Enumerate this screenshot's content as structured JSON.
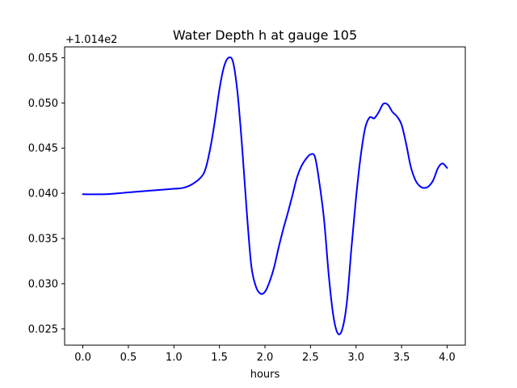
{
  "chart_data": {
    "type": "line",
    "title": "Water Depth h at gauge 105",
    "xlabel": "hours",
    "ylabel": "",
    "offset_label": "+1.014e2",
    "xlim": [
      -0.2,
      4.2
    ],
    "ylim": [
      0.0232,
      0.0562
    ],
    "xticks": [
      0.0,
      0.5,
      1.0,
      1.5,
      2.0,
      2.5,
      3.0,
      3.5,
      4.0
    ],
    "xtick_labels": [
      "0.0",
      "0.5",
      "1.0",
      "1.5",
      "2.0",
      "2.5",
      "3.0",
      "3.5",
      "4.0"
    ],
    "yticks": [
      0.025,
      0.03,
      0.035,
      0.04,
      0.045,
      0.05,
      0.055
    ],
    "ytick_labels": [
      "0.025",
      "0.030",
      "0.035",
      "0.040",
      "0.045",
      "0.050",
      "0.055"
    ],
    "grid": false,
    "series": [
      {
        "color": "#0000ff",
        "x": [
          0.0,
          0.25,
          0.5,
          0.75,
          1.0,
          1.1,
          1.2,
          1.3,
          1.35,
          1.4,
          1.45,
          1.5,
          1.55,
          1.6,
          1.65,
          1.7,
          1.75,
          1.8,
          1.85,
          1.9,
          1.95,
          2.0,
          2.05,
          2.1,
          2.15,
          2.2,
          2.25,
          2.3,
          2.35,
          2.4,
          2.45,
          2.5,
          2.55,
          2.6,
          2.65,
          2.7,
          2.75,
          2.8,
          2.85,
          2.9,
          2.95,
          3.0,
          3.05,
          3.1,
          3.15,
          3.2,
          3.25,
          3.3,
          3.35,
          3.4,
          3.45,
          3.5,
          3.55,
          3.6,
          3.65,
          3.7,
          3.75,
          3.8,
          3.85,
          3.9,
          3.95,
          4.0
        ],
        "y": [
          0.0399,
          0.0399,
          0.0401,
          0.0403,
          0.0405,
          0.0406,
          0.041,
          0.0418,
          0.0428,
          0.045,
          0.048,
          0.0515,
          0.054,
          0.055,
          0.0545,
          0.051,
          0.045,
          0.038,
          0.032,
          0.0297,
          0.0289,
          0.0291,
          0.0302,
          0.0318,
          0.034,
          0.036,
          0.0378,
          0.0397,
          0.0417,
          0.043,
          0.0438,
          0.0443,
          0.044,
          0.041,
          0.037,
          0.031,
          0.0265,
          0.0245,
          0.025,
          0.028,
          0.034,
          0.0395,
          0.044,
          0.0472,
          0.0484,
          0.0483,
          0.049,
          0.0499,
          0.0498,
          0.049,
          0.0485,
          0.0476,
          0.0455,
          0.043,
          0.0415,
          0.0408,
          0.0406,
          0.0408,
          0.0415,
          0.0428,
          0.0433,
          0.0428
        ]
      }
    ]
  }
}
